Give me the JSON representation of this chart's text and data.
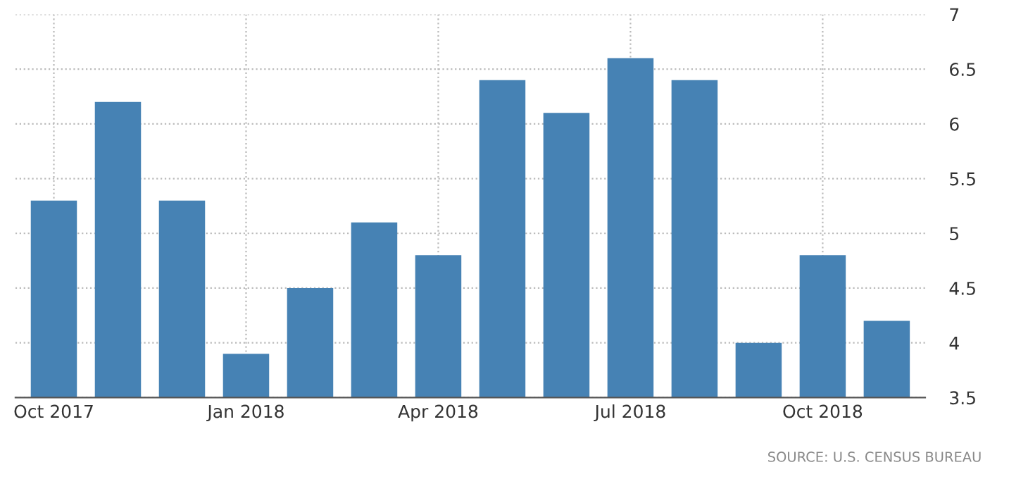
{
  "chart_data": {
    "type": "bar",
    "categories": [
      "Oct 2017",
      null,
      null,
      "Jan 2018",
      null,
      null,
      "Apr 2018",
      null,
      null,
      "Jul 2018",
      null,
      null,
      "Oct 2018",
      null
    ],
    "values": [
      5.3,
      6.2,
      5.3,
      3.9,
      4.5,
      5.1,
      4.8,
      6.4,
      6.1,
      6.6,
      6.4,
      4.0,
      4.8,
      4.2
    ],
    "color": "#4682b4",
    "ylim": [
      3.5,
      7
    ],
    "yticks": [
      3.5,
      4,
      4.5,
      5,
      5.5,
      6,
      6.5,
      7
    ],
    "grid": true,
    "annotations": [
      "SOURCE: U.S. CENSUS BUREAU"
    ]
  }
}
